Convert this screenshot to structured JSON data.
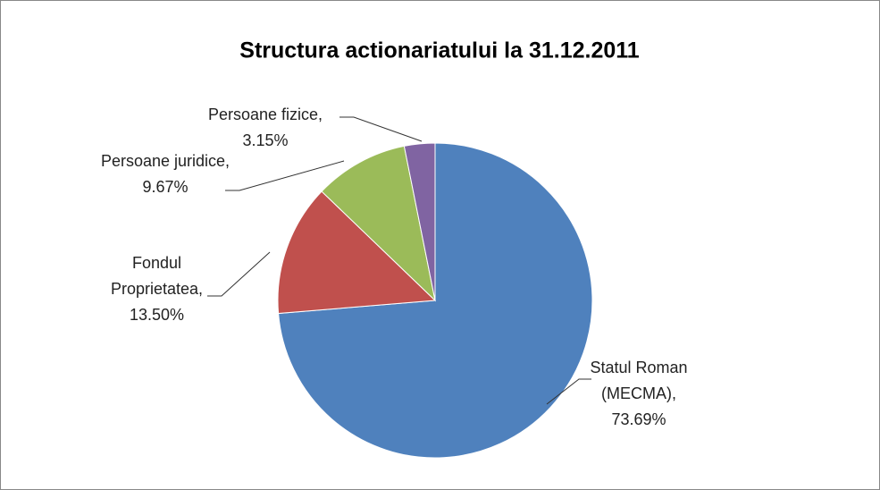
{
  "chart_data": {
    "type": "pie",
    "title": "Structura actionariatului la 31.12.2011",
    "categories": [
      "Statul Roman (MECMA)",
      "Fondul Proprietatea",
      "Persoane juridice",
      "Persoane fizice"
    ],
    "values": [
      73.69,
      13.5,
      9.67,
      3.15
    ],
    "value_labels": [
      "73.69%",
      "13.50%",
      "9.67%",
      "3.15%"
    ],
    "colors": [
      "#4f81bd",
      "#c0504d",
      "#9bbb59",
      "#8064a2"
    ]
  }
}
